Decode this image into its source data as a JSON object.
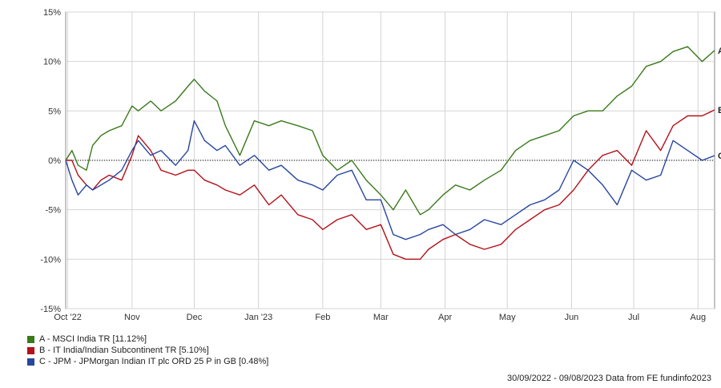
{
  "chart_data": {
    "type": "line",
    "xlim": [
      "2022-09-30",
      "2023-08-09"
    ],
    "ylim": [
      -15,
      15
    ],
    "y_ticks": [
      15,
      10,
      5,
      0,
      -5,
      -10,
      -15
    ],
    "y_tick_labels": [
      "15%",
      "10%",
      "5%",
      "0%",
      "-5%",
      "-10%",
      "-15%"
    ],
    "x_ticks": [
      {
        "date": "2022-10-01",
        "label": "Oct '22"
      },
      {
        "date": "2022-11-01",
        "label": "Nov"
      },
      {
        "date": "2022-12-01",
        "label": "Dec"
      },
      {
        "date": "2023-01-01",
        "label": "Jan '23"
      },
      {
        "date": "2023-02-01",
        "label": "Feb"
      },
      {
        "date": "2023-03-01",
        "label": "Mar"
      },
      {
        "date": "2023-04-01",
        "label": "Apr"
      },
      {
        "date": "2023-05-01",
        "label": "May"
      },
      {
        "date": "2023-06-01",
        "label": "Jun"
      },
      {
        "date": "2023-07-01",
        "label": "Jul"
      },
      {
        "date": "2023-08-01",
        "label": "Aug"
      }
    ],
    "grid": true,
    "zero_line": "dotted",
    "series": [
      {
        "name": "A - MSCI India TR [11.12%]",
        "end_label": "A",
        "color": "#3a7a1a",
        "x": [
          "2022-09-30",
          "2022-10-03",
          "2022-10-06",
          "2022-10-10",
          "2022-10-13",
          "2022-10-17",
          "2022-10-21",
          "2022-10-27",
          "2022-11-01",
          "2022-11-04",
          "2022-11-10",
          "2022-11-15",
          "2022-11-22",
          "2022-11-28",
          "2022-12-01",
          "2022-12-06",
          "2022-12-12",
          "2022-12-16",
          "2022-12-23",
          "2022-12-30",
          "2023-01-06",
          "2023-01-12",
          "2023-01-20",
          "2023-01-27",
          "2023-02-01",
          "2023-02-08",
          "2023-02-15",
          "2023-02-22",
          "2023-03-01",
          "2023-03-07",
          "2023-03-13",
          "2023-03-20",
          "2023-03-24",
          "2023-03-31",
          "2023-04-06",
          "2023-04-13",
          "2023-04-20",
          "2023-04-28",
          "2023-05-05",
          "2023-05-12",
          "2023-05-19",
          "2023-05-26",
          "2023-06-02",
          "2023-06-09",
          "2023-06-16",
          "2023-06-23",
          "2023-06-30",
          "2023-07-07",
          "2023-07-14",
          "2023-07-20",
          "2023-07-27",
          "2023-08-03",
          "2023-08-09"
        ],
        "values": [
          0.0,
          1.0,
          -0.5,
          -1.0,
          1.5,
          2.5,
          3.0,
          3.5,
          5.5,
          5.0,
          6.0,
          5.0,
          6.0,
          7.5,
          8.2,
          7.0,
          6.0,
          3.5,
          0.5,
          4.0,
          3.5,
          4.0,
          3.5,
          3.0,
          0.5,
          -1.0,
          0.0,
          -2.0,
          -3.5,
          -5.0,
          -3.0,
          -5.5,
          -5.0,
          -3.5,
          -2.5,
          -3.0,
          -2.0,
          -1.0,
          1.0,
          2.0,
          2.5,
          3.0,
          4.5,
          5.0,
          5.0,
          6.5,
          7.5,
          9.5,
          10.0,
          11.0,
          11.5,
          10.0,
          11.12
        ]
      },
      {
        "name": "B - IT India/Indian Subcontinent TR [5.10%]",
        "end_label": "B",
        "color": "#b3121a",
        "x": [
          "2022-09-30",
          "2022-10-03",
          "2022-10-06",
          "2022-10-10",
          "2022-10-13",
          "2022-10-17",
          "2022-10-21",
          "2022-10-27",
          "2022-11-01",
          "2022-11-04",
          "2022-11-10",
          "2022-11-15",
          "2022-11-22",
          "2022-11-28",
          "2022-12-01",
          "2022-12-06",
          "2022-12-12",
          "2022-12-16",
          "2022-12-23",
          "2022-12-30",
          "2023-01-06",
          "2023-01-12",
          "2023-01-20",
          "2023-01-27",
          "2023-02-01",
          "2023-02-08",
          "2023-02-15",
          "2023-02-22",
          "2023-03-01",
          "2023-03-07",
          "2023-03-13",
          "2023-03-20",
          "2023-03-24",
          "2023-03-31",
          "2023-04-06",
          "2023-04-13",
          "2023-04-20",
          "2023-04-28",
          "2023-05-05",
          "2023-05-12",
          "2023-05-19",
          "2023-05-26",
          "2023-06-02",
          "2023-06-09",
          "2023-06-16",
          "2023-06-23",
          "2023-06-30",
          "2023-07-07",
          "2023-07-14",
          "2023-07-20",
          "2023-07-27",
          "2023-08-03",
          "2023-08-09"
        ],
        "values": [
          0.0,
          0.0,
          -1.5,
          -2.5,
          -3.0,
          -2.0,
          -1.5,
          -2.0,
          0.5,
          2.5,
          1.0,
          -1.0,
          -1.5,
          -1.0,
          -1.0,
          -2.0,
          -2.5,
          -3.0,
          -3.5,
          -2.5,
          -4.5,
          -3.5,
          -5.5,
          -6.0,
          -7.0,
          -6.0,
          -5.5,
          -7.0,
          -6.5,
          -9.5,
          -10.0,
          -10.0,
          -9.0,
          -8.0,
          -7.5,
          -8.5,
          -9.0,
          -8.5,
          -7.0,
          -6.0,
          -5.0,
          -4.5,
          -3.0,
          -1.0,
          0.5,
          1.0,
          -0.5,
          3.0,
          1.0,
          3.5,
          4.5,
          4.5,
          5.1
        ]
      },
      {
        "name": "C - JPM - JPMorgan Indian IT plc ORD 25 P in GB [0.48%]",
        "end_label": "C",
        "color": "#2746a0",
        "x": [
          "2022-09-30",
          "2022-10-03",
          "2022-10-06",
          "2022-10-10",
          "2022-10-13",
          "2022-10-17",
          "2022-10-21",
          "2022-10-27",
          "2022-11-01",
          "2022-11-04",
          "2022-11-10",
          "2022-11-15",
          "2022-11-22",
          "2022-11-28",
          "2022-12-01",
          "2022-12-06",
          "2022-12-12",
          "2022-12-16",
          "2022-12-23",
          "2022-12-30",
          "2023-01-06",
          "2023-01-12",
          "2023-01-20",
          "2023-01-27",
          "2023-02-01",
          "2023-02-08",
          "2023-02-15",
          "2023-02-22",
          "2023-03-01",
          "2023-03-07",
          "2023-03-13",
          "2023-03-20",
          "2023-03-24",
          "2023-03-31",
          "2023-04-06",
          "2023-04-13",
          "2023-04-20",
          "2023-04-28",
          "2023-05-05",
          "2023-05-12",
          "2023-05-19",
          "2023-05-26",
          "2023-06-02",
          "2023-06-09",
          "2023-06-16",
          "2023-06-23",
          "2023-06-30",
          "2023-07-07",
          "2023-07-14",
          "2023-07-20",
          "2023-07-27",
          "2023-08-03",
          "2023-08-09"
        ],
        "values": [
          0.0,
          -2.0,
          -3.5,
          -2.5,
          -3.0,
          -2.5,
          -2.0,
          -1.0,
          1.0,
          2.0,
          0.5,
          1.0,
          -0.5,
          1.0,
          4.0,
          2.0,
          1.0,
          1.5,
          -0.5,
          0.5,
          -1.0,
          -0.5,
          -2.0,
          -2.5,
          -3.0,
          -1.5,
          -1.0,
          -4.0,
          -4.0,
          -7.5,
          -8.0,
          -7.5,
          -7.0,
          -6.5,
          -7.5,
          -7.0,
          -6.0,
          -6.5,
          -5.5,
          -4.5,
          -4.0,
          -3.0,
          0.0,
          -1.0,
          -2.5,
          -4.5,
          -1.0,
          -2.0,
          -1.5,
          2.0,
          1.0,
          0.0,
          0.48
        ]
      }
    ],
    "legend_position": "bottom-left"
  },
  "footer": "30/09/2022 - 09/08/2023 Data from FE fundinfo2023"
}
